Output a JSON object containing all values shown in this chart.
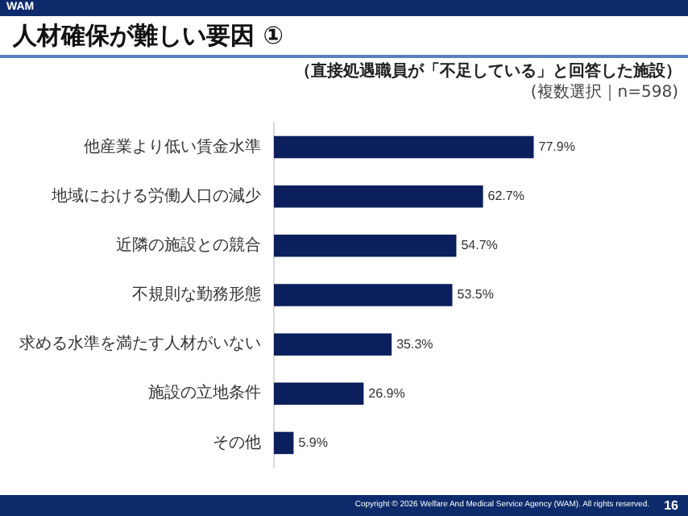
{
  "chart_data": {
    "type": "bar",
    "orientation": "horizontal",
    "title": "人材確保が難しい要因 ①",
    "subtitle": "（直接処遇職員が「不足している」と回答した施設）",
    "categories": [
      "他産業より低い賃金水準",
      "地域における労働人口の減少",
      "近隣の施設との競合",
      "不規則な勤務形態",
      "求める水準を満たす人材がいない",
      "施設の立地条件",
      "その他"
    ],
    "values": [
      77.9,
      62.7,
      54.7,
      53.5,
      35.3,
      26.9,
      5.9
    ],
    "value_labels": [
      "77.9%",
      "62.7%",
      "54.7%",
      "53.5%",
      "35.3%",
      "26.9%",
      "5.9%"
    ],
    "color": "#0a1f5c",
    "annotations": [
      "WAM",
      "(複数選択｜n=598)",
      "Copyright © 2026 Welfare And Medical Service Agency (WAM). All rights reserved.",
      "16"
    ]
  }
}
